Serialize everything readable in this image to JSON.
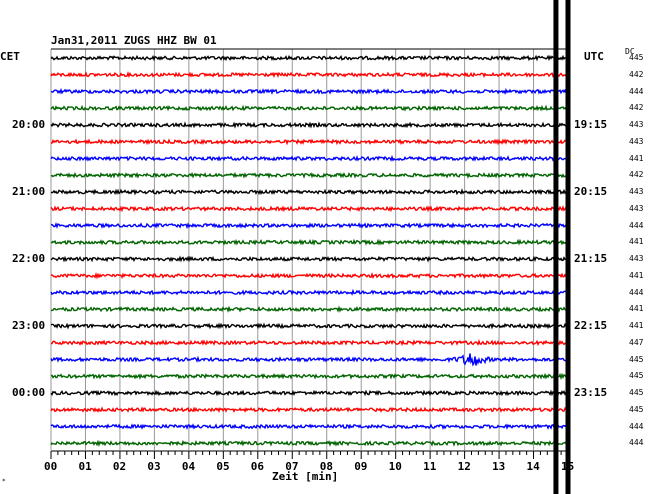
{
  "header": {
    "title": "Jan31,2011   ZUGS HHZ BW 01",
    "left_zone": "CET",
    "right_zone": "UTC",
    "dc_label": "DC",
    "x_axis_label": "Zeit [min]",
    "corner_mark": "*"
  },
  "colors": {
    "trace_cycle": [
      "#000000",
      "#ff0000",
      "#0000ff",
      "#006400"
    ],
    "grid": "#999999",
    "marker": "#000000"
  },
  "chart_data": {
    "type": "line",
    "title": "Jan31,2011   ZUGS HHZ BW 01",
    "xlabel": "Zeit [min]",
    "x_range": [
      0,
      15
    ],
    "x_ticks": [
      "00",
      "01",
      "02",
      "03",
      "04",
      "05",
      "06",
      "07",
      "08",
      "09",
      "10",
      "11",
      "12",
      "13",
      "14",
      "15"
    ],
    "rows": 24,
    "left_hour_labels": [
      {
        "row": 4,
        "text": "20:00"
      },
      {
        "row": 8,
        "text": "21:00"
      },
      {
        "row": 12,
        "text": "22:00"
      },
      {
        "row": 16,
        "text": "23:00"
      },
      {
        "row": 20,
        "text": "00:00"
      }
    ],
    "right_hour_labels": [
      {
        "row": 4,
        "text": "19:15"
      },
      {
        "row": 8,
        "text": "20:15"
      },
      {
        "row": 12,
        "text": "21:15"
      },
      {
        "row": 16,
        "text": "22:15"
      },
      {
        "row": 20,
        "text": "23:15"
      }
    ],
    "dc_offsets": [
      "445",
      "442",
      "444",
      "442",
      "443",
      "443",
      "441",
      "442",
      "443",
      "443",
      "444",
      "441",
      "443",
      "441",
      "444",
      "441",
      "441",
      "447",
      "445",
      "445",
      "445",
      "445",
      "444",
      "444"
    ],
    "events": [
      {
        "row": 18,
        "minute": 12.2,
        "note": "burst"
      }
    ],
    "markers_minutes": [
      14.65,
      15.0
    ],
    "grid": true
  }
}
